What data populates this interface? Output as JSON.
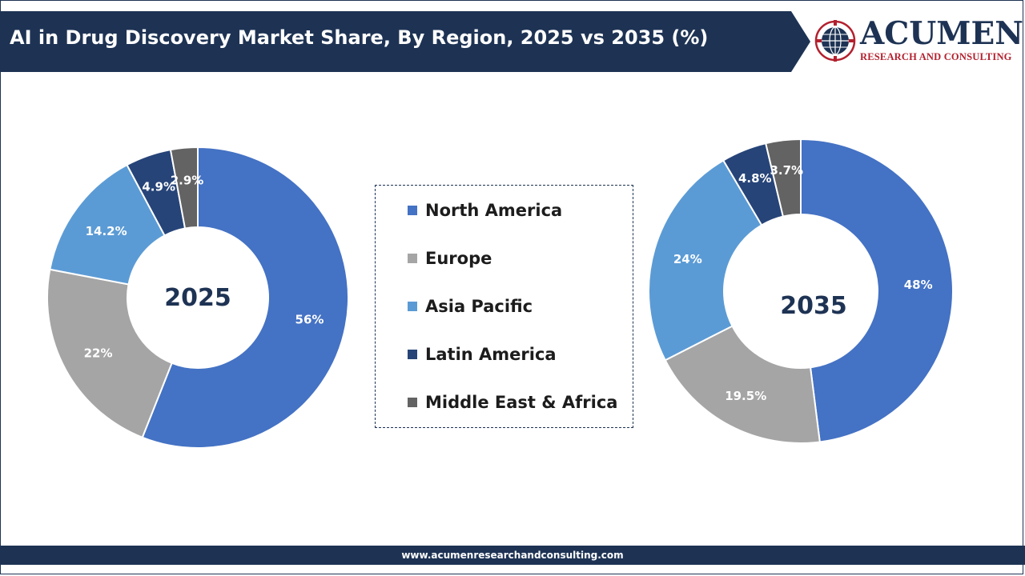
{
  "header": {
    "title": "AI in Drug Discovery Market Share, By Region, 2025 vs 2035 (%)",
    "logo_word": "ACUMEN",
    "logo_subtitle": "RESEARCH AND CONSULTING"
  },
  "footer": {
    "url": "www.acumenresearchandconsulting.com"
  },
  "colors": {
    "navy": "#1e3354",
    "north_america": "#4472c4",
    "europe": "#a5a5a5",
    "asia_pacific": "#5b9bd5",
    "latin_america": "#264478",
    "middle_east_africa": "#636363",
    "logo_red": "#b3202e"
  },
  "chart_data": [
    {
      "type": "pie",
      "variant": "donut",
      "center_label": "2025",
      "categories": [
        "North America",
        "Europe",
        "Asia Pacific",
        "Latin America",
        "Middle East & Africa"
      ],
      "values": [
        56,
        22,
        14.2,
        4.9,
        2.9
      ],
      "value_labels": [
        "56%",
        "22%",
        "14.2%",
        "4.9%",
        "2.9%"
      ]
    },
    {
      "type": "pie",
      "variant": "donut",
      "center_label": "2035",
      "categories": [
        "North America",
        "Europe",
        "Asia Pacific",
        "Latin America",
        "Middle East & Africa"
      ],
      "values": [
        48,
        19.5,
        24,
        4.8,
        3.7
      ],
      "value_labels": [
        "48%",
        "19.5%",
        "24%",
        "4.8%",
        "3.7%"
      ]
    }
  ],
  "legend": {
    "placement": "center",
    "items": [
      {
        "label": "North America",
        "color": "#4472c4"
      },
      {
        "label": "Europe",
        "color": "#a5a5a5"
      },
      {
        "label": "Asia Pacific",
        "color": "#5b9bd5"
      },
      {
        "label": "Latin America",
        "color": "#264478"
      },
      {
        "label": "Middle East & Africa",
        "color": "#636363"
      }
    ]
  }
}
